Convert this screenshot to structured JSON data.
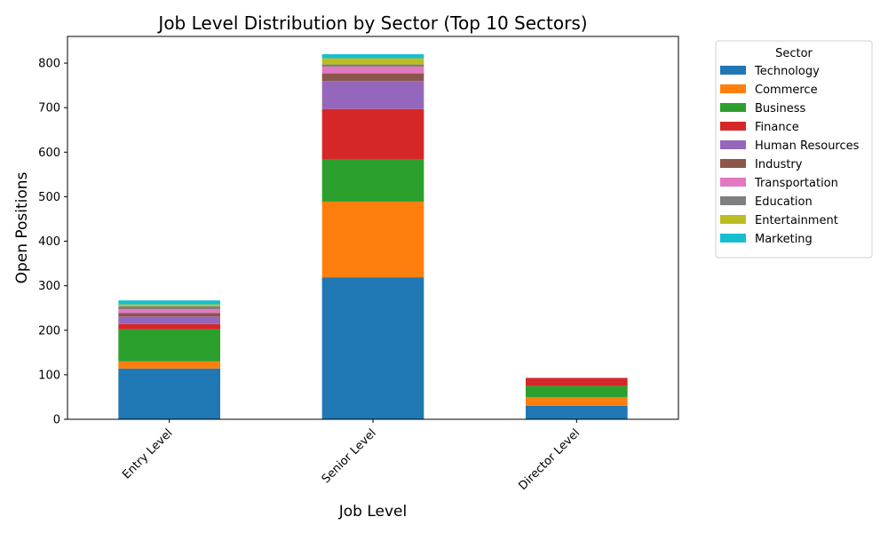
{
  "chart_data": {
    "type": "bar",
    "stacked": true,
    "title": "Job Level Distribution by Sector (Top 10 Sectors)",
    "xlabel": "Job Level",
    "ylabel": "Open Positions",
    "categories": [
      "Entry Level",
      "Senior Level",
      "Director Level"
    ],
    "ylim": [
      0,
      860
    ],
    "yticks": [
      0,
      100,
      200,
      300,
      400,
      500,
      600,
      700,
      800
    ],
    "legend_title": "Sector",
    "legend_position": "outside-top-right",
    "series": [
      {
        "name": "Technology",
        "color": "#1f77b4",
        "values": [
          114,
          319,
          30
        ]
      },
      {
        "name": "Commerce",
        "color": "#ff7f0e",
        "values": [
          16,
          170,
          20
        ]
      },
      {
        "name": "Business",
        "color": "#2ca02c",
        "values": [
          72,
          94,
          25
        ]
      },
      {
        "name": "Finance",
        "color": "#d62728",
        "values": [
          12,
          114,
          18
        ]
      },
      {
        "name": "Human Resources",
        "color": "#9467bd",
        "values": [
          17,
          63,
          0
        ]
      },
      {
        "name": "Industry",
        "color": "#8c564b",
        "values": [
          8,
          17,
          0
        ]
      },
      {
        "name": "Transportation",
        "color": "#e377c2",
        "values": [
          8,
          15,
          0
        ]
      },
      {
        "name": "Education",
        "color": "#7f7f7f",
        "values": [
          7,
          5,
          0
        ]
      },
      {
        "name": "Entertainment",
        "color": "#bcbd22",
        "values": [
          4,
          14,
          0
        ]
      },
      {
        "name": "Marketing",
        "color": "#17becf",
        "values": [
          9,
          9,
          0
        ]
      }
    ]
  }
}
